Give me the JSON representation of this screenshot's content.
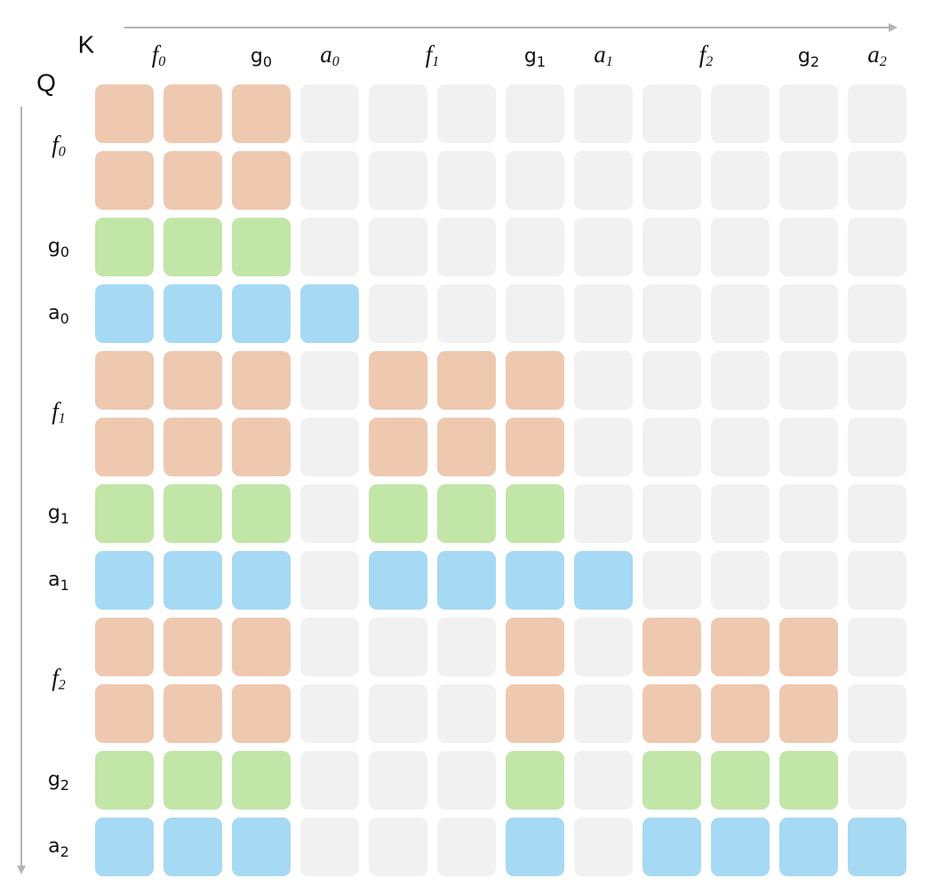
{
  "axes": {
    "k": "K",
    "q": "Q"
  },
  "columns": [
    {
      "base": "f",
      "sub": "0",
      "span": 2,
      "italic": true
    },
    {
      "base": "g",
      "sub": "0",
      "span": 1,
      "italic": false
    },
    {
      "base": "a",
      "sub": "0",
      "span": 1,
      "italic": true
    },
    {
      "base": "f",
      "sub": "1",
      "span": 2,
      "italic": true
    },
    {
      "base": "g",
      "sub": "1",
      "span": 1,
      "italic": false
    },
    {
      "base": "a",
      "sub": "1",
      "span": 1,
      "italic": true
    },
    {
      "base": "f",
      "sub": "2",
      "span": 2,
      "italic": true
    },
    {
      "base": "g",
      "sub": "2",
      "span": 1,
      "italic": false
    },
    {
      "base": "a",
      "sub": "2",
      "span": 1,
      "italic": true
    }
  ],
  "rows": [
    {
      "base": "f",
      "sub": "0",
      "span": 2,
      "italic": true
    },
    {
      "base": "g",
      "sub": "0",
      "span": 1,
      "italic": false
    },
    {
      "base": "a",
      "sub": "0",
      "span": 1,
      "italic": false
    },
    {
      "base": "f",
      "sub": "1",
      "span": 2,
      "italic": true
    },
    {
      "base": "g",
      "sub": "1",
      "span": 1,
      "italic": false
    },
    {
      "base": "a",
      "sub": "1",
      "span": 1,
      "italic": false
    },
    {
      "base": "f",
      "sub": "2",
      "span": 2,
      "italic": true
    },
    {
      "base": "g",
      "sub": "2",
      "span": 1,
      "italic": false
    },
    {
      "base": "a",
      "sub": "2",
      "span": 1,
      "italic": false
    }
  ],
  "colors": [
    "#f1f1f1",
    "#efc8b0",
    "#c2e5a8",
    "#a6d9f3"
  ],
  "grid": [
    [
      1,
      1,
      1,
      0,
      0,
      0,
      0,
      0,
      0,
      0,
      0,
      0
    ],
    [
      1,
      1,
      1,
      0,
      0,
      0,
      0,
      0,
      0,
      0,
      0,
      0
    ],
    [
      2,
      2,
      2,
      0,
      0,
      0,
      0,
      0,
      0,
      0,
      0,
      0
    ],
    [
      3,
      3,
      3,
      3,
      0,
      0,
      0,
      0,
      0,
      0,
      0,
      0
    ],
    [
      1,
      1,
      1,
      0,
      1,
      1,
      1,
      0,
      0,
      0,
      0,
      0
    ],
    [
      1,
      1,
      1,
      0,
      1,
      1,
      1,
      0,
      0,
      0,
      0,
      0
    ],
    [
      2,
      2,
      2,
      0,
      2,
      2,
      2,
      0,
      0,
      0,
      0,
      0
    ],
    [
      3,
      3,
      3,
      0,
      3,
      3,
      3,
      3,
      0,
      0,
      0,
      0
    ],
    [
      1,
      1,
      1,
      0,
      0,
      0,
      1,
      0,
      1,
      1,
      1,
      0
    ],
    [
      1,
      1,
      1,
      0,
      0,
      0,
      1,
      0,
      1,
      1,
      1,
      0
    ],
    [
      2,
      2,
      2,
      0,
      0,
      0,
      2,
      0,
      2,
      2,
      2,
      0
    ],
    [
      3,
      3,
      3,
      0,
      0,
      0,
      3,
      0,
      3,
      3,
      3,
      3
    ]
  ]
}
